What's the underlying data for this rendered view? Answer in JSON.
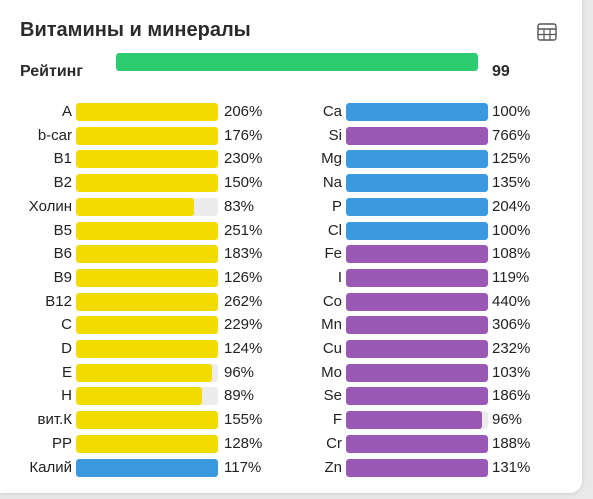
{
  "card": {
    "title": "Витамины и минералы",
    "table_icon": "table-grid-icon",
    "rating": {
      "label": "Рейтинг",
      "value": "99",
      "fill": 1.0,
      "color": "#2ecc71"
    }
  },
  "colors": {
    "vitamin": "#f2dc00",
    "macro": "#3b99e0",
    "micro": "#9b59b6",
    "track": "#ececec"
  },
  "left_items": [
    {
      "label": "A",
      "value": "206%",
      "fill": 1.0,
      "kind": "vitamin"
    },
    {
      "label": "b-car",
      "value": "176%",
      "fill": 1.0,
      "kind": "vitamin"
    },
    {
      "label": "B1",
      "value": "230%",
      "fill": 1.0,
      "kind": "vitamin"
    },
    {
      "label": "B2",
      "value": "150%",
      "fill": 1.0,
      "kind": "vitamin"
    },
    {
      "label": "Холин",
      "value": "83%",
      "fill": 0.83,
      "kind": "vitamin"
    },
    {
      "label": "B5",
      "value": "251%",
      "fill": 1.0,
      "kind": "vitamin"
    },
    {
      "label": "B6",
      "value": "183%",
      "fill": 1.0,
      "kind": "vitamin"
    },
    {
      "label": "B9",
      "value": "126%",
      "fill": 1.0,
      "kind": "vitamin"
    },
    {
      "label": "B12",
      "value": "262%",
      "fill": 1.0,
      "kind": "vitamin"
    },
    {
      "label": "C",
      "value": "229%",
      "fill": 1.0,
      "kind": "vitamin"
    },
    {
      "label": "D",
      "value": "124%",
      "fill": 1.0,
      "kind": "vitamin"
    },
    {
      "label": "E",
      "value": "96%",
      "fill": 0.96,
      "kind": "vitamin"
    },
    {
      "label": "H",
      "value": "89%",
      "fill": 0.89,
      "kind": "vitamin"
    },
    {
      "label": "вит.К",
      "value": "155%",
      "fill": 1.0,
      "kind": "vitamin"
    },
    {
      "label": "PP",
      "value": "128%",
      "fill": 1.0,
      "kind": "vitamin"
    },
    {
      "label": "Калий",
      "value": "117%",
      "fill": 1.0,
      "kind": "macro"
    }
  ],
  "right_items": [
    {
      "label": "Ca",
      "value": "100%",
      "fill": 1.0,
      "kind": "macro"
    },
    {
      "label": "Si",
      "value": "766%",
      "fill": 1.0,
      "kind": "micro"
    },
    {
      "label": "Mg",
      "value": "125%",
      "fill": 1.0,
      "kind": "macro"
    },
    {
      "label": "Na",
      "value": "135%",
      "fill": 1.0,
      "kind": "macro"
    },
    {
      "label": "P",
      "value": "204%",
      "fill": 1.0,
      "kind": "macro"
    },
    {
      "label": "Cl",
      "value": "100%",
      "fill": 1.0,
      "kind": "macro"
    },
    {
      "label": "Fe",
      "value": "108%",
      "fill": 1.0,
      "kind": "micro"
    },
    {
      "label": "I",
      "value": "119%",
      "fill": 1.0,
      "kind": "micro"
    },
    {
      "label": "Co",
      "value": "440%",
      "fill": 1.0,
      "kind": "micro"
    },
    {
      "label": "Mn",
      "value": "306%",
      "fill": 1.0,
      "kind": "micro"
    },
    {
      "label": "Cu",
      "value": "232%",
      "fill": 1.0,
      "kind": "micro"
    },
    {
      "label": "Mo",
      "value": "103%",
      "fill": 1.0,
      "kind": "micro"
    },
    {
      "label": "Se",
      "value": "186%",
      "fill": 1.0,
      "kind": "micro"
    },
    {
      "label": "F",
      "value": "96%",
      "fill": 0.96,
      "kind": "micro"
    },
    {
      "label": "Cr",
      "value": "188%",
      "fill": 1.0,
      "kind": "micro"
    },
    {
      "label": "Zn",
      "value": "131%",
      "fill": 1.0,
      "kind": "micro"
    }
  ]
}
